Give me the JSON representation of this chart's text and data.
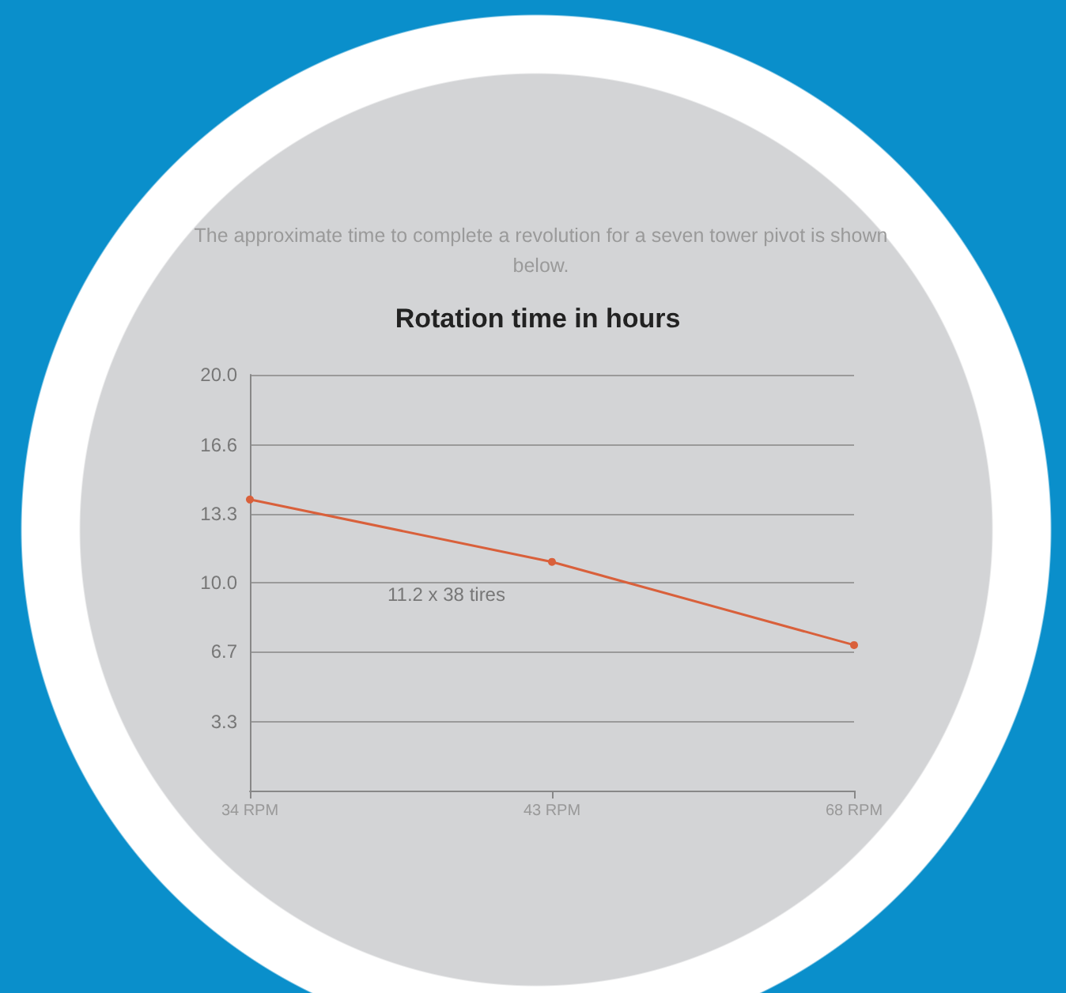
{
  "chart_data": {
    "type": "line",
    "title": "Rotation time in hours",
    "subtitle": "The approximate time to complete a revolution for a seven tower pivot is shown below.",
    "annotations": [
      "11.2 x 38 tires"
    ],
    "categories": [
      "34 RPM",
      "43 RPM",
      "68 RPM"
    ],
    "series": [
      {
        "color": "#d9603b",
        "values": [
          14.0,
          11.0,
          7.0
        ]
      }
    ],
    "ylim": [
      0,
      20
    ],
    "yticks": [
      {
        "value": 0,
        "label": null
      },
      3.3,
      6.7,
      {
        "value": 10,
        "label": "10.0"
      },
      13.3,
      16.6,
      {
        "value": 20,
        "label": "20.0"
      }
    ],
    "grid": "y",
    "marker": "circle",
    "line_style": "solid"
  }
}
